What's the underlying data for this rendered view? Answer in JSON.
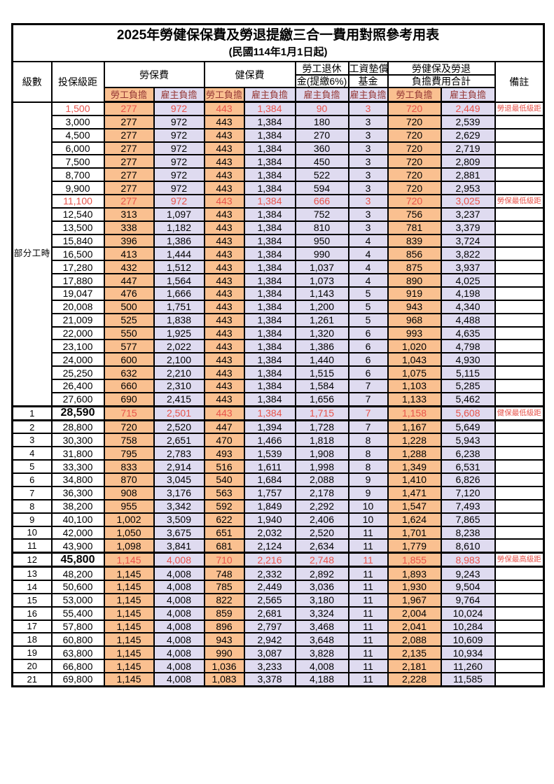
{
  "page": {
    "title_line1": "2025年勞健保保費及勞退提繳三合一費用對照參考用表",
    "title_line2": "(民國114年1月1日起)"
  },
  "colors": {
    "employee_burden_bg": "#FAC090",
    "employer_burden_bg": "#DFDBF0",
    "highlight_text": "#E8544B",
    "subheader_text": "#953735",
    "border": "#000000"
  },
  "table": {
    "headers": {
      "level": "級數",
      "bracket": "投保級距",
      "labor_fee": "勞保費",
      "health_fee": "健保費",
      "pension_line1": "勞工退休",
      "pension_line2": "金(提繳6%)",
      "wage_fund_line1": "工資墊償",
      "wage_fund_line2": "基金",
      "total_line1": "勞健保及勞退",
      "total_line2": "負擔費用合計",
      "remark": "備註",
      "employee_burden": "勞工負擔",
      "employer_burden": "雇主負擔"
    },
    "section": {
      "label": "部分工時",
      "row_count": 23
    },
    "rows": [
      {
        "level": null,
        "bracket": "1,500",
        "values": [
          "277",
          "972",
          "443",
          "1,384",
          "90",
          "3",
          "720",
          "2,449"
        ],
        "remark": "勞退最低級距",
        "highlight": true,
        "emphasis": false
      },
      {
        "level": null,
        "bracket": "3,000",
        "values": [
          "277",
          "972",
          "443",
          "1,384",
          "180",
          "3",
          "720",
          "2,539"
        ],
        "remark": "",
        "highlight": false,
        "emphasis": false
      },
      {
        "level": null,
        "bracket": "4,500",
        "values": [
          "277",
          "972",
          "443",
          "1,384",
          "270",
          "3",
          "720",
          "2,629"
        ],
        "remark": "",
        "highlight": false,
        "emphasis": false
      },
      {
        "level": null,
        "bracket": "6,000",
        "values": [
          "277",
          "972",
          "443",
          "1,384",
          "360",
          "3",
          "720",
          "2,719"
        ],
        "remark": "",
        "highlight": false,
        "emphasis": false
      },
      {
        "level": null,
        "bracket": "7,500",
        "values": [
          "277",
          "972",
          "443",
          "1,384",
          "450",
          "3",
          "720",
          "2,809"
        ],
        "remark": "",
        "highlight": false,
        "emphasis": false
      },
      {
        "level": null,
        "bracket": "8,700",
        "values": [
          "277",
          "972",
          "443",
          "1,384",
          "522",
          "3",
          "720",
          "2,881"
        ],
        "remark": "",
        "highlight": false,
        "emphasis": false
      },
      {
        "level": null,
        "bracket": "9,900",
        "values": [
          "277",
          "972",
          "443",
          "1,384",
          "594",
          "3",
          "720",
          "2,953"
        ],
        "remark": "",
        "highlight": false,
        "emphasis": false
      },
      {
        "level": null,
        "bracket": "11,100",
        "values": [
          "277",
          "972",
          "443",
          "1,384",
          "666",
          "3",
          "720",
          "3,025"
        ],
        "remark": "勞保最低級距",
        "highlight": true,
        "emphasis": false
      },
      {
        "level": null,
        "bracket": "12,540",
        "values": [
          "313",
          "1,097",
          "443",
          "1,384",
          "752",
          "3",
          "756",
          "3,237"
        ],
        "remark": "",
        "highlight": false,
        "emphasis": false
      },
      {
        "level": null,
        "bracket": "13,500",
        "values": [
          "338",
          "1,182",
          "443",
          "1,384",
          "810",
          "3",
          "781",
          "3,379"
        ],
        "remark": "",
        "highlight": false,
        "emphasis": false
      },
      {
        "level": null,
        "bracket": "15,840",
        "values": [
          "396",
          "1,386",
          "443",
          "1,384",
          "950",
          "4",
          "839",
          "3,724"
        ],
        "remark": "",
        "highlight": false,
        "emphasis": false
      },
      {
        "level": null,
        "bracket": "16,500",
        "values": [
          "413",
          "1,444",
          "443",
          "1,384",
          "990",
          "4",
          "856",
          "3,822"
        ],
        "remark": "",
        "highlight": false,
        "emphasis": false
      },
      {
        "level": null,
        "bracket": "17,280",
        "values": [
          "432",
          "1,512",
          "443",
          "1,384",
          "1,037",
          "4",
          "875",
          "3,937"
        ],
        "remark": "",
        "highlight": false,
        "emphasis": false
      },
      {
        "level": null,
        "bracket": "17,880",
        "values": [
          "447",
          "1,564",
          "443",
          "1,384",
          "1,073",
          "4",
          "890",
          "4,025"
        ],
        "remark": "",
        "highlight": false,
        "emphasis": false
      },
      {
        "level": null,
        "bracket": "19,047",
        "values": [
          "476",
          "1,666",
          "443",
          "1,384",
          "1,143",
          "5",
          "919",
          "4,198"
        ],
        "remark": "",
        "highlight": false,
        "emphasis": false
      },
      {
        "level": null,
        "bracket": "20,008",
        "values": [
          "500",
          "1,751",
          "443",
          "1,384",
          "1,200",
          "5",
          "943",
          "4,340"
        ],
        "remark": "",
        "highlight": false,
        "emphasis": false
      },
      {
        "level": null,
        "bracket": "21,009",
        "values": [
          "525",
          "1,838",
          "443",
          "1,384",
          "1,261",
          "5",
          "968",
          "4,488"
        ],
        "remark": "",
        "highlight": false,
        "emphasis": false
      },
      {
        "level": null,
        "bracket": "22,000",
        "values": [
          "550",
          "1,925",
          "443",
          "1,384",
          "1,320",
          "6",
          "993",
          "4,635"
        ],
        "remark": "",
        "highlight": false,
        "emphasis": false
      },
      {
        "level": null,
        "bracket": "23,100",
        "values": [
          "577",
          "2,022",
          "443",
          "1,384",
          "1,386",
          "6",
          "1,020",
          "4,798"
        ],
        "remark": "",
        "highlight": false,
        "emphasis": false
      },
      {
        "level": null,
        "bracket": "24,000",
        "values": [
          "600",
          "2,100",
          "443",
          "1,384",
          "1,440",
          "6",
          "1,043",
          "4,930"
        ],
        "remark": "",
        "highlight": false,
        "emphasis": false
      },
      {
        "level": null,
        "bracket": "25,250",
        "values": [
          "632",
          "2,210",
          "443",
          "1,384",
          "1,515",
          "6",
          "1,075",
          "5,115"
        ],
        "remark": "",
        "highlight": false,
        "emphasis": false
      },
      {
        "level": null,
        "bracket": "26,400",
        "values": [
          "660",
          "2,310",
          "443",
          "1,384",
          "1,584",
          "7",
          "1,103",
          "5,285"
        ],
        "remark": "",
        "highlight": false,
        "emphasis": false
      },
      {
        "level": null,
        "bracket": "27,600",
        "values": [
          "690",
          "2,415",
          "443",
          "1,384",
          "1,656",
          "7",
          "1,133",
          "5,462"
        ],
        "remark": "",
        "highlight": false,
        "emphasis": false
      },
      {
        "level": "1",
        "bracket": "28,590",
        "values": [
          "715",
          "2,501",
          "443",
          "1,384",
          "1,715",
          "7",
          "1,158",
          "5,608"
        ],
        "remark": "健保最低級距",
        "highlight": true,
        "emphasis": true
      },
      {
        "level": "2",
        "bracket": "28,800",
        "values": [
          "720",
          "2,520",
          "447",
          "1,394",
          "1,728",
          "7",
          "1,167",
          "5,649"
        ],
        "remark": "",
        "highlight": false,
        "emphasis": false
      },
      {
        "level": "3",
        "bracket": "30,300",
        "values": [
          "758",
          "2,651",
          "470",
          "1,466",
          "1,818",
          "8",
          "1,228",
          "5,943"
        ],
        "remark": "",
        "highlight": false,
        "emphasis": false
      },
      {
        "level": "4",
        "bracket": "31,800",
        "values": [
          "795",
          "2,783",
          "493",
          "1,539",
          "1,908",
          "8",
          "1,288",
          "6,238"
        ],
        "remark": "",
        "highlight": false,
        "emphasis": false
      },
      {
        "level": "5",
        "bracket": "33,300",
        "values": [
          "833",
          "2,914",
          "516",
          "1,611",
          "1,998",
          "8",
          "1,349",
          "6,531"
        ],
        "remark": "",
        "highlight": false,
        "emphasis": false
      },
      {
        "level": "6",
        "bracket": "34,800",
        "values": [
          "870",
          "3,045",
          "540",
          "1,684",
          "2,088",
          "9",
          "1,410",
          "6,826"
        ],
        "remark": "",
        "highlight": false,
        "emphasis": false
      },
      {
        "level": "7",
        "bracket": "36,300",
        "values": [
          "908",
          "3,176",
          "563",
          "1,757",
          "2,178",
          "9",
          "1,471",
          "7,120"
        ],
        "remark": "",
        "highlight": false,
        "emphasis": false
      },
      {
        "level": "8",
        "bracket": "38,200",
        "values": [
          "955",
          "3,342",
          "592",
          "1,849",
          "2,292",
          "10",
          "1,547",
          "7,493"
        ],
        "remark": "",
        "highlight": false,
        "emphasis": false
      },
      {
        "level": "9",
        "bracket": "40,100",
        "values": [
          "1,002",
          "3,509",
          "622",
          "1,940",
          "2,406",
          "10",
          "1,624",
          "7,865"
        ],
        "remark": "",
        "highlight": false,
        "emphasis": false
      },
      {
        "level": "10",
        "bracket": "42,000",
        "values": [
          "1,050",
          "3,675",
          "651",
          "2,032",
          "2,520",
          "11",
          "1,701",
          "8,238"
        ],
        "remark": "",
        "highlight": false,
        "emphasis": false
      },
      {
        "level": "11",
        "bracket": "43,900",
        "values": [
          "1,098",
          "3,841",
          "681",
          "2,124",
          "2,634",
          "11",
          "1,779",
          "8,610"
        ],
        "remark": "",
        "highlight": false,
        "emphasis": false
      },
      {
        "level": "12",
        "bracket": "45,800",
        "values": [
          "1,145",
          "4,008",
          "710",
          "2,216",
          "2,748",
          "11",
          "1,855",
          "8,983"
        ],
        "remark": "勞保最高級距",
        "highlight": true,
        "emphasis": true
      },
      {
        "level": "13",
        "bracket": "48,200",
        "values": [
          "1,145",
          "4,008",
          "748",
          "2,332",
          "2,892",
          "11",
          "1,893",
          "9,243"
        ],
        "remark": "",
        "highlight": false,
        "emphasis": false
      },
      {
        "level": "14",
        "bracket": "50,600",
        "values": [
          "1,145",
          "4,008",
          "785",
          "2,449",
          "3,036",
          "11",
          "1,930",
          "9,504"
        ],
        "remark": "",
        "highlight": false,
        "emphasis": false
      },
      {
        "level": "15",
        "bracket": "53,000",
        "values": [
          "1,145",
          "4,008",
          "822",
          "2,565",
          "3,180",
          "11",
          "1,967",
          "9,764"
        ],
        "remark": "",
        "highlight": false,
        "emphasis": false
      },
      {
        "level": "16",
        "bracket": "55,400",
        "values": [
          "1,145",
          "4,008",
          "859",
          "2,681",
          "3,324",
          "11",
          "2,004",
          "10,024"
        ],
        "remark": "",
        "highlight": false,
        "emphasis": false
      },
      {
        "level": "17",
        "bracket": "57,800",
        "values": [
          "1,145",
          "4,008",
          "896",
          "2,797",
          "3,468",
          "11",
          "2,041",
          "10,284"
        ],
        "remark": "",
        "highlight": false,
        "emphasis": false
      },
      {
        "level": "18",
        "bracket": "60,800",
        "values": [
          "1,145",
          "4,008",
          "943",
          "2,942",
          "3,648",
          "11",
          "2,088",
          "10,609"
        ],
        "remark": "",
        "highlight": false,
        "emphasis": false
      },
      {
        "level": "19",
        "bracket": "63,800",
        "values": [
          "1,145",
          "4,008",
          "990",
          "3,087",
          "3,828",
          "11",
          "2,135",
          "10,934"
        ],
        "remark": "",
        "highlight": false,
        "emphasis": false
      },
      {
        "level": "20",
        "bracket": "66,800",
        "values": [
          "1,145",
          "4,008",
          "1,036",
          "3,233",
          "4,008",
          "11",
          "2,181",
          "11,260"
        ],
        "remark": "",
        "highlight": false,
        "emphasis": false
      },
      {
        "level": "21",
        "bracket": "69,800",
        "values": [
          "1,145",
          "4,008",
          "1,083",
          "3,378",
          "4,188",
          "11",
          "2,228",
          "11,585"
        ],
        "remark": "",
        "highlight": false,
        "emphasis": false
      }
    ]
  }
}
